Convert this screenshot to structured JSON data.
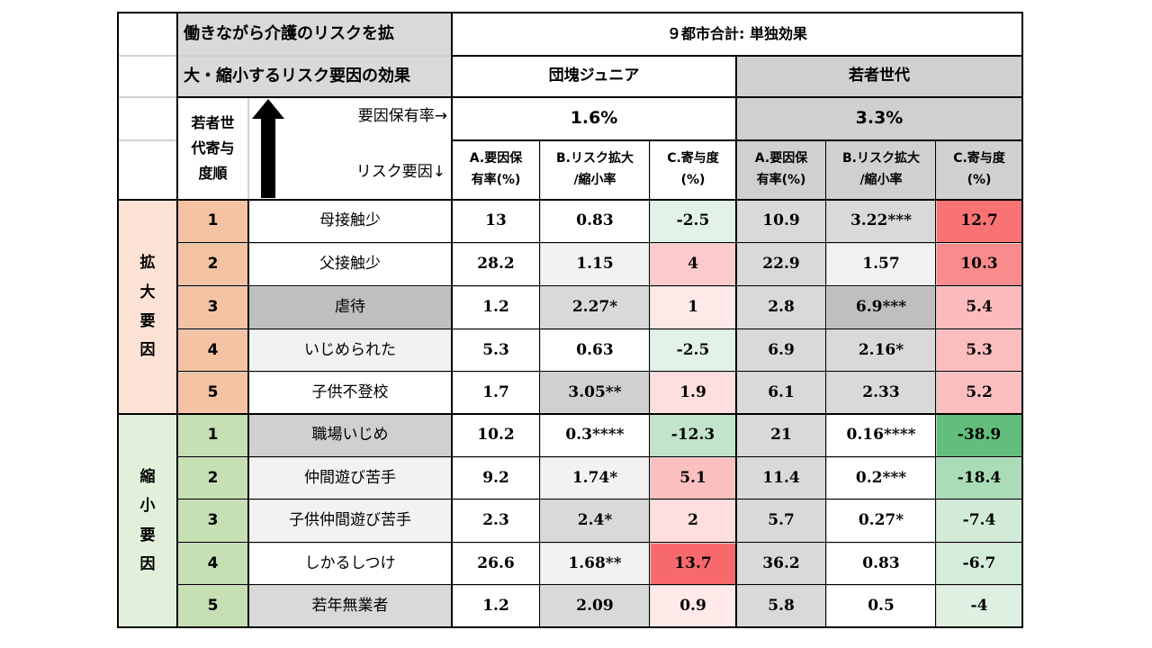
{
  "header": {
    "title_line1": "働きながら介護のリスクを拡",
    "title_line2": "大・縮小するリスク要因の効果",
    "region": "９都市合計: 単独効果",
    "group1": "団塊ジュニア",
    "group2": "若者世代",
    "order_label": "若者世\n代寄与\n度順",
    "prevalence_label": "要因保有率→",
    "risk_label": "リスク要因↓",
    "group1_rate": "1.6%",
    "group2_rate": "3.3%",
    "col_a": "A.要因保\n有率(%)",
    "col_b": "B.リスク拡大\n/縮小率",
    "col_c": "C.寄与度\n(%)"
  },
  "sections": [
    {
      "label": "拡\n大\n要\n因",
      "rows": [
        {
          "rank": "1",
          "factor": "母接触少",
          "g1a": "13",
          "g1b": "0.83",
          "g1c": "-2.5",
          "g2a": "10.9",
          "g2b": "3.22***",
          "g2c": "12.7"
        },
        {
          "rank": "2",
          "factor": "父接触少",
          "g1a": "28.2",
          "g1b": "1.15",
          "g1c": "4",
          "g2a": "22.9",
          "g2b": "1.57",
          "g2c": "10.3"
        },
        {
          "rank": "3",
          "factor": "虐待",
          "g1a": "1.2",
          "g1b": "2.27*",
          "g1c": "1",
          "g2a": "2.8",
          "g2b": "6.9***",
          "g2c": "5.4"
        },
        {
          "rank": "4",
          "factor": "いじめられた",
          "g1a": "5.3",
          "g1b": "0.63",
          "g1c": "-2.5",
          "g2a": "6.9",
          "g2b": "2.16*",
          "g2c": "5.3"
        },
        {
          "rank": "5",
          "factor": "子供不登校",
          "g1a": "1.7",
          "g1b": "3.05**",
          "g1c": "1.9",
          "g2a": "6.1",
          "g2b": "2.33",
          "g2c": "5.2"
        }
      ]
    },
    {
      "label": "縮\n小\n要\n因",
      "rows": [
        {
          "rank": "1",
          "factor": "職場いじめ",
          "g1a": "10.2",
          "g1b": "0.3****",
          "g1c": "-12.3",
          "g2a": "21",
          "g2b": "0.16****",
          "g2c": "-38.9"
        },
        {
          "rank": "2",
          "factor": "仲間遊び苦手",
          "g1a": "9.2",
          "g1b": "1.74*",
          "g1c": "5.1",
          "g2a": "11.4",
          "g2b": "0.2***",
          "g2c": "-18.4"
        },
        {
          "rank": "3",
          "factor": "子供仲間遊び苦手",
          "g1a": "2.3",
          "g1b": "2.4*",
          "g1c": "2",
          "g2a": "5.7",
          "g2b": "0.27*",
          "g2c": "-7.4"
        },
        {
          "rank": "4",
          "factor": "しかるしつけ",
          "g1a": "26.6",
          "g1b": "1.68**",
          "g1c": "13.7",
          "g2a": "36.2",
          "g2b": "0.83",
          "g2c": "-6.7"
        },
        {
          "rank": "5",
          "factor": "若年無業者",
          "g1a": "1.2",
          "g1b": "2.09",
          "g1c": "0.9",
          "g2a": "5.8",
          "g2b": "0.5",
          "g2c": "-4"
        }
      ]
    }
  ],
  "colors": {
    "expand_label": "#fbe2d5",
    "expand_rank": "#f4c3a3",
    "shrink_label": "#e2efda",
    "shrink_rank": "#c6e0b4",
    "header_gray": "#d0d0d0",
    "group2_gray": "#d9d9d9"
  }
}
